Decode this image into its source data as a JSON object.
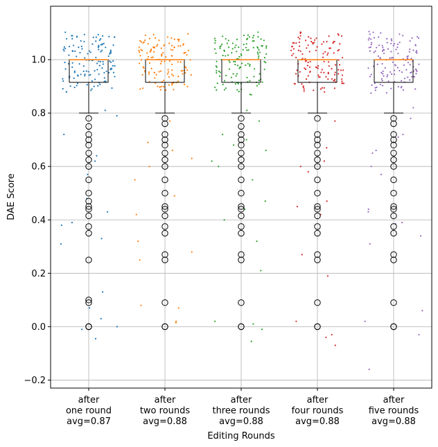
{
  "chart_data": {
    "type": "box",
    "title": "",
    "xlabel": "Editing Rounds",
    "ylabel": "DAE Score",
    "ylim": [
      -0.23,
      1.2
    ],
    "yticks": [
      -0.2,
      0.0,
      0.2,
      0.4,
      0.6,
      0.8,
      1.0
    ],
    "ytick_labels": [
      "−0.2",
      "0.0",
      "0.2",
      "0.4",
      "0.6",
      "0.8",
      "1.0"
    ],
    "grid": true,
    "categories": [
      {
        "line1": "after",
        "line2": "one round",
        "line3": "avg=0.87"
      },
      {
        "line1": "after",
        "line2": "two rounds",
        "line3": "avg=0.88"
      },
      {
        "line1": "after",
        "line2": "three rounds",
        "line3": "avg=0.88"
      },
      {
        "line1": "after",
        "line2": "four rounds",
        "line3": "avg=0.88"
      },
      {
        "line1": "after",
        "line2": "five rounds",
        "line3": "avg=0.88"
      }
    ],
    "series": [
      {
        "name": "after one round",
        "color": "#1f77b4",
        "q1": 0.915,
        "median": 1.0,
        "q3": 1.0,
        "whisker_low": 0.8,
        "whisker_high": 1.0,
        "outliers": [
          0.78,
          0.75,
          0.72,
          0.7,
          0.68,
          0.65,
          0.625,
          0.6,
          0.55,
          0.5,
          0.47,
          0.45,
          0.44,
          0.415,
          0.375,
          0.35,
          0.25,
          0.1,
          0.09,
          0.0,
          0.0,
          0.0
        ],
        "jitter": [
          0.57,
          0.39,
          0.38,
          0.31,
          0.72,
          0.64,
          0.48,
          0.43,
          0.13,
          0.07,
          0.03,
          -0.01,
          -0.045,
          0.0,
          0.81,
          0.79,
          0.33,
          0.62
        ]
      },
      {
        "name": "after two rounds",
        "color": "#ff7f0e",
        "q1": 0.915,
        "median": 1.0,
        "q3": 1.0,
        "whisker_low": 0.8,
        "whisker_high": 1.0,
        "outliers": [
          0.78,
          0.76,
          0.72,
          0.7,
          0.68,
          0.65,
          0.625,
          0.6,
          0.55,
          0.5,
          0.45,
          0.44,
          0.415,
          0.375,
          0.35,
          0.27,
          0.25,
          0.09,
          0.0,
          0.0
        ],
        "jitter": [
          0.55,
          0.69,
          0.66,
          0.49,
          0.42,
          0.28,
          0.25,
          0.08,
          0.07,
          0.02,
          0.015,
          0.77,
          0.63,
          0.32,
          0.6
        ]
      },
      {
        "name": "after three rounds",
        "color": "#2ca02c",
        "q1": 0.915,
        "median": 1.0,
        "q3": 1.0,
        "whisker_low": 0.8,
        "whisker_high": 1.0,
        "outliers": [
          0.78,
          0.75,
          0.72,
          0.7,
          0.68,
          0.65,
          0.625,
          0.6,
          0.55,
          0.5,
          0.45,
          0.44,
          0.415,
          0.375,
          0.35,
          0.27,
          0.25,
          0.09,
          0.0,
          0.0
        ],
        "jitter": [
          0.81,
          0.77,
          0.72,
          0.7,
          0.68,
          0.66,
          0.55,
          0.47,
          0.4,
          0.32,
          0.21,
          0.02,
          0.01,
          -0.01,
          -0.055,
          0.62,
          0.6,
          0.44
        ]
      },
      {
        "name": "after four rounds",
        "color": "#d62728",
        "q1": 0.915,
        "median": 1.0,
        "q3": 1.0,
        "whisker_low": 0.8,
        "whisker_high": 1.0,
        "outliers": [
          0.78,
          0.72,
          0.7,
          0.68,
          0.65,
          0.625,
          0.6,
          0.55,
          0.5,
          0.45,
          0.44,
          0.415,
          0.375,
          0.35,
          0.27,
          0.25,
          0.09,
          0.0,
          0.0
        ],
        "jitter": [
          0.67,
          0.62,
          0.58,
          0.47,
          0.45,
          0.27,
          0.19,
          0.02,
          -0.03,
          -0.04,
          -0.07,
          0.77,
          0.6,
          0.42
        ]
      },
      {
        "name": "after five rounds",
        "color": "#9467bd",
        "q1": 0.915,
        "median": 1.0,
        "q3": 1.0,
        "whisker_low": 0.8,
        "whisker_high": 1.0,
        "outliers": [
          0.78,
          0.76,
          0.72,
          0.7,
          0.68,
          0.65,
          0.625,
          0.6,
          0.55,
          0.5,
          0.45,
          0.44,
          0.415,
          0.375,
          0.35,
          0.27,
          0.25,
          0.09,
          0.0,
          0.0
        ],
        "jitter": [
          0.82,
          0.72,
          0.66,
          0.65,
          0.6,
          0.57,
          0.44,
          0.43,
          0.39,
          0.385,
          0.34,
          0.06,
          0.02,
          -0.03,
          -0.16,
          0.78,
          0.71,
          0.31
        ]
      }
    ]
  }
}
